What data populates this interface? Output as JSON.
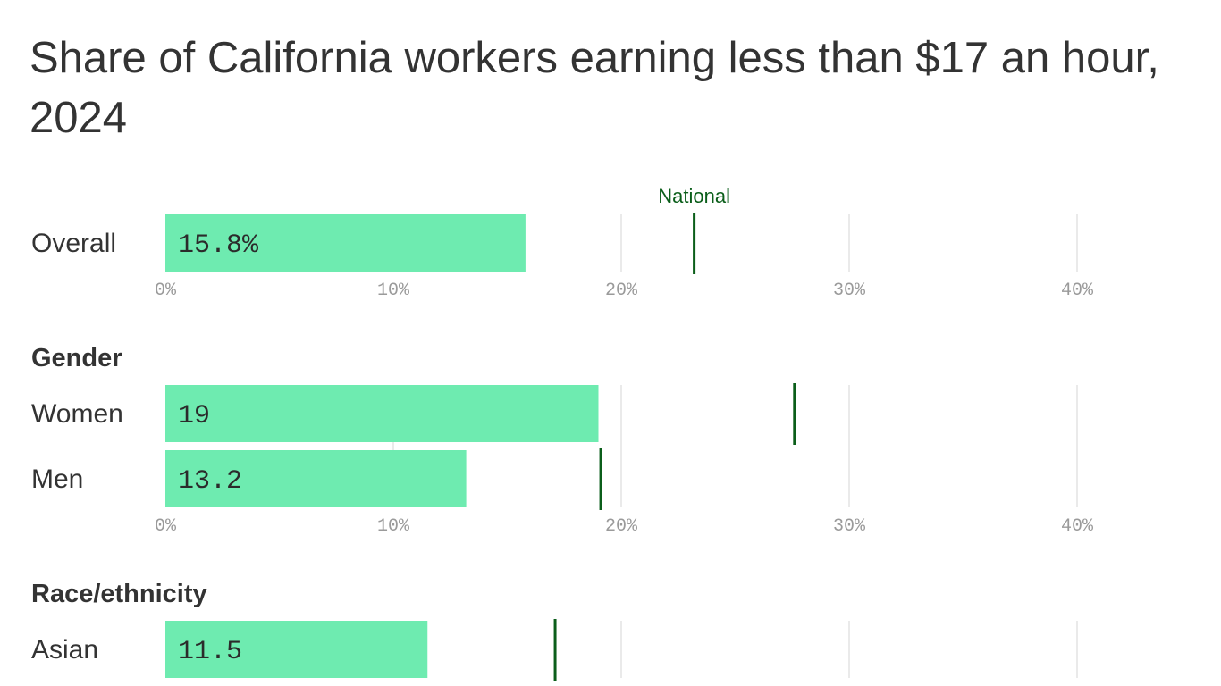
{
  "chart_data": {
    "type": "bar",
    "title": "Share of California workers earning less than $17 an hour, 2024",
    "xlim": [
      0,
      40
    ],
    "ticks": [
      "0%",
      "10%",
      "20%",
      "30%",
      "40%"
    ],
    "tick_values": [
      0,
      10,
      20,
      30,
      40
    ],
    "national_label": "National",
    "colors": {
      "bar": "#6eebb0",
      "national_marker": "#0b5e1a"
    },
    "sections": [
      {
        "group": "",
        "show_axis": true,
        "rows": [
          {
            "category": "Overall",
            "value": 15.8,
            "value_label": "15.8%",
            "national": 23.2
          }
        ]
      },
      {
        "group": "Gender",
        "show_axis": true,
        "rows": [
          {
            "category": "Women",
            "value": 19,
            "value_label": "19",
            "national": 27.6
          },
          {
            "category": "Men",
            "value": 13.2,
            "value_label": "13.2",
            "national": 19.1
          }
        ]
      },
      {
        "group": "Race/ethnicity",
        "show_axis": false,
        "rows": [
          {
            "category": "Asian",
            "value": 11.5,
            "value_label": "11.5",
            "national": 17.1
          }
        ]
      }
    ]
  }
}
